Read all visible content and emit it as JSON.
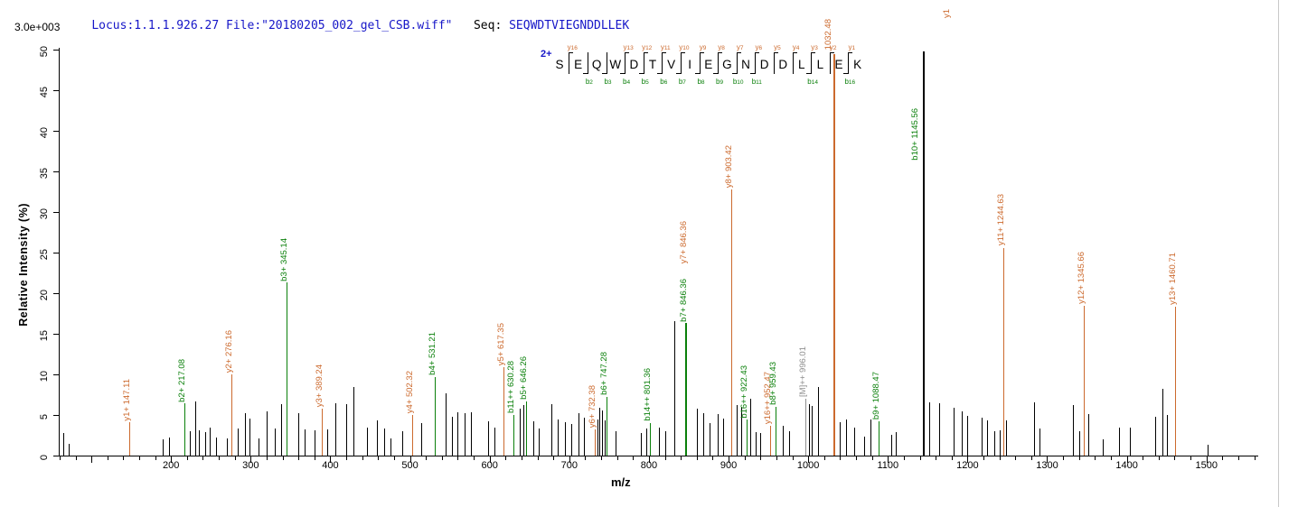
{
  "header": {
    "locus_file": "Locus:1.1.1.926.27 File:\"20180205_002_gel_CSB.wiff\"",
    "seq_label": "Seq:",
    "sequence": "SEQWDTVIEGNDDLLEK",
    "scale_note": "3.0e+003"
  },
  "colors": {
    "y_ion": "#cc6a2e",
    "b_ion": "#0b800b",
    "precursor": "#8f8f8f",
    "peak_black": "#000000",
    "header_blue": "#1616c8"
  },
  "sequence_panel": {
    "charge": "2+",
    "residues": [
      "S",
      "E",
      "Q",
      "W",
      "D",
      "T",
      "V",
      "I",
      "E",
      "G",
      "N",
      "D",
      "D",
      "L",
      "L",
      "E",
      "K"
    ],
    "boundaries": [
      {
        "y": "y16",
        "b": null
      },
      {
        "y": null,
        "b": "b2"
      },
      {
        "y": null,
        "b": "b3"
      },
      {
        "y": "y13",
        "b": "b4"
      },
      {
        "y": "y12",
        "b": "b5"
      },
      {
        "y": "y11",
        "b": "b6"
      },
      {
        "y": "y10",
        "b": "b7"
      },
      {
        "y": "y9",
        "b": "b8"
      },
      {
        "y": "y8",
        "b": "b9"
      },
      {
        "y": "y7",
        "b": "b10"
      },
      {
        "y": "y6",
        "b": "b11"
      },
      {
        "y": "y5",
        "b": null
      },
      {
        "y": "y4",
        "b": null
      },
      {
        "y": "y3",
        "b": "b14"
      },
      {
        "y": "y2",
        "b": null
      },
      {
        "y": "y1",
        "b": "b16"
      }
    ]
  },
  "chart_data": {
    "type": "bar",
    "subtype": "ms2-centroid-mass-spectrum",
    "xlabel": "m/z",
    "ylabel": "Relative  Intensity (%)",
    "xlim": [
      59,
      1565
    ],
    "ylim": [
      0,
      50
    ],
    "x_major_ticks": [
      100,
      200,
      300,
      400,
      500,
      600,
      700,
      800,
      900,
      1000,
      1100,
      1200,
      1300,
      1400,
      1500
    ],
    "x_tick_labels": [
      "200",
      "300",
      "400",
      "500",
      "600",
      "700",
      "800",
      "900",
      "1000",
      "1100",
      "1200",
      "1300",
      "1400",
      "1500"
    ],
    "x_minor_tick_step": 20,
    "y_ticks": [
      0,
      5,
      10,
      15,
      20,
      25,
      30,
      35,
      40,
      45,
      50
    ],
    "legend": null,
    "grid": false,
    "labeled_peaks": [
      {
        "ion": "y1+",
        "mz": 147.11,
        "pct": 4.1,
        "type": "y",
        "label": "y1+ 147.11"
      },
      {
        "ion": "b2+",
        "mz": 217.08,
        "pct": 6.4,
        "type": "b",
        "label": "b2+ 217.08"
      },
      {
        "ion": "y2+",
        "mz": 276.16,
        "pct": 10.0,
        "type": "y",
        "label": "y2+ 276.16"
      },
      {
        "ion": "b3+",
        "mz": 345.14,
        "pct": 21.3,
        "type": "b",
        "label": "b3+ 345.14"
      },
      {
        "ion": "y3+",
        "mz": 389.24,
        "pct": 5.8,
        "type": "y",
        "label": "y3+ 389.24"
      },
      {
        "ion": "y4+",
        "mz": 502.32,
        "pct": 5.0,
        "type": "y",
        "label": "y4+ 502.32"
      },
      {
        "ion": "b4+",
        "mz": 531.21,
        "pct": 9.7,
        "type": "b",
        "label": "b4+ 531.21"
      },
      {
        "ion": "y5+",
        "mz": 617.35,
        "pct": 10.9,
        "type": "y",
        "label": "y5+ 617.35"
      },
      {
        "ion": "b11++",
        "mz": 630.28,
        "pct": 5.0,
        "type": "b",
        "label": "b11++ 630.28"
      },
      {
        "ion": "b5+",
        "mz": 646.26,
        "pct": 6.7,
        "type": "b",
        "label": "b5+ 646.26"
      },
      {
        "ion": "y6+",
        "mz": 732.38,
        "pct": 3.2,
        "type": "y",
        "label": "y6+ 732.38"
      },
      {
        "ion": "b6+",
        "mz": 747.28,
        "pct": 7.2,
        "type": "b",
        "label": "b6+ 747.28"
      },
      {
        "ion": "b14++",
        "mz": 801.36,
        "pct": 4.0,
        "type": "b",
        "label": "b14++ 801.36"
      },
      {
        "ion": "b7+",
        "mz": 846.36,
        "pct": 16.3,
        "type": "b",
        "label": "b7+ 846.36",
        "w": 2,
        "second_label": {
          "ion": "y7+",
          "type": "y",
          "label": "y7+ 846.36",
          "offset": 64
        }
      },
      {
        "ion": "y8+",
        "mz": 903.42,
        "pct": 32.8,
        "type": "y",
        "label": "y8+ 903.42"
      },
      {
        "ion": "b16++",
        "mz": 922.43,
        "pct": 4.4,
        "type": "b",
        "label": "b16++ 922.43"
      },
      {
        "ion": "y16++",
        "mz": 952.47,
        "pct": 3.7,
        "type": "y",
        "label": "y16++ 952.47"
      },
      {
        "ion": "b8+",
        "mz": 959.43,
        "pct": 6.0,
        "type": "b",
        "label": "b8+ 959.43"
      },
      {
        "ion": "[M]++",
        "mz": 996.01,
        "pct": 7.0,
        "type": "M",
        "label": "[M]++ 996.01"
      },
      {
        "ion": "y9+",
        "mz": 1032.48,
        "pct": 49.5,
        "type": "y",
        "label": "1032.48",
        "w": 2,
        "label_mode": "top"
      },
      {
        "ion": "b9+",
        "mz": 1088.47,
        "pct": 4.2,
        "type": "b",
        "label": "b9+ 1088.47"
      },
      {
        "ion": "b10+",
        "mz": 1145.56,
        "pct": 49.8,
        "type": "b",
        "label": "b10+ 1145.56",
        "w": 2,
        "line_color": "#000000",
        "label_mode": "beside"
      },
      {
        "ion": "y11+",
        "mz": 1244.63,
        "pct": 25.6,
        "type": "y",
        "label": "y11+ 1244.63"
      },
      {
        "ion": "y12+",
        "mz": 1345.66,
        "pct": 18.5,
        "type": "y",
        "label": "y12+ 1345.66"
      },
      {
        "ion": "y13+",
        "mz": 1460.71,
        "pct": 18.3,
        "type": "y",
        "label": "y13+ 1460.71"
      }
    ],
    "clipped_labels": [
      {
        "label": "y1",
        "mz": 1176,
        "type": "y",
        "bottom_y": 20
      }
    ],
    "background_peaks": [
      [
        65,
        2.8
      ],
      [
        72,
        1.4
      ],
      [
        190,
        2.0
      ],
      [
        197,
        2.2
      ],
      [
        224,
        3.0
      ],
      [
        230,
        6.7
      ],
      [
        235,
        3.1
      ],
      [
        243,
        2.9
      ],
      [
        248,
        3.4
      ],
      [
        256,
        2.2
      ],
      [
        270,
        2.1
      ],
      [
        284,
        3.3
      ],
      [
        293,
        5.2
      ],
      [
        299,
        4.6
      ],
      [
        310,
        2.1
      ],
      [
        320,
        5.5
      ],
      [
        330,
        3.3
      ],
      [
        338,
        6.3
      ],
      [
        360,
        5.2
      ],
      [
        368,
        3.2
      ],
      [
        380,
        3.1
      ],
      [
        396,
        3.2
      ],
      [
        406,
        6.4
      ],
      [
        420,
        6.3
      ],
      [
        429,
        8.4
      ],
      [
        446,
        3.4
      ],
      [
        458,
        4.3
      ],
      [
        468,
        3.3
      ],
      [
        476,
        2.1
      ],
      [
        490,
        3.0
      ],
      [
        514,
        4.0
      ],
      [
        545,
        7.7
      ],
      [
        553,
        4.8
      ],
      [
        560,
        5.3
      ],
      [
        568,
        5.2
      ],
      [
        576,
        5.3
      ],
      [
        598,
        4.2
      ],
      [
        606,
        3.4
      ],
      [
        638,
        5.8
      ],
      [
        642,
        6.2
      ],
      [
        655,
        4.2
      ],
      [
        662,
        3.3
      ],
      [
        678,
        6.3
      ],
      [
        686,
        4.4
      ],
      [
        694,
        4.1
      ],
      [
        702,
        3.9
      ],
      [
        712,
        5.2
      ],
      [
        718,
        4.7
      ],
      [
        735,
        4.5
      ],
      [
        738,
        5.9
      ],
      [
        741,
        5.6
      ],
      [
        744,
        4.3
      ],
      [
        758,
        3.0
      ],
      [
        790,
        2.8
      ],
      [
        797,
        3.3
      ],
      [
        812,
        3.5
      ],
      [
        820,
        3.0
      ],
      [
        832,
        16.6
      ],
      [
        860,
        5.8
      ],
      [
        868,
        5.2
      ],
      [
        876,
        4.0
      ],
      [
        886,
        5.1
      ],
      [
        893,
        4.6
      ],
      [
        910,
        6.2
      ],
      [
        916,
        6.0
      ],
      [
        927,
        7.0
      ],
      [
        934,
        2.9
      ],
      [
        940,
        2.8
      ],
      [
        968,
        3.7
      ],
      [
        976,
        3.0
      ],
      [
        1001,
        6.3
      ],
      [
        1004,
        6.1
      ],
      [
        1012,
        8.5
      ],
      [
        1040,
        4.1
      ],
      [
        1048,
        4.4
      ],
      [
        1058,
        3.5
      ],
      [
        1070,
        2.3
      ],
      [
        1078,
        4.5
      ],
      [
        1104,
        2.6
      ],
      [
        1110,
        2.9
      ],
      [
        1152,
        6.6
      ],
      [
        1164,
        6.4
      ],
      [
        1182,
        5.9
      ],
      [
        1193,
        5.5
      ],
      [
        1199,
        4.9
      ],
      [
        1218,
        4.7
      ],
      [
        1224,
        4.3
      ],
      [
        1234,
        3.0
      ],
      [
        1240,
        3.1
      ],
      [
        1248,
        4.3
      ],
      [
        1283,
        6.6
      ],
      [
        1290,
        3.3
      ],
      [
        1332,
        6.2
      ],
      [
        1340,
        3.0
      ],
      [
        1352,
        5.1
      ],
      [
        1370,
        2.0
      ],
      [
        1390,
        3.4
      ],
      [
        1404,
        3.5
      ],
      [
        1436,
        4.8
      ],
      [
        1445,
        8.2
      ],
      [
        1450,
        5.0
      ],
      [
        1502,
        1.3
      ]
    ]
  }
}
